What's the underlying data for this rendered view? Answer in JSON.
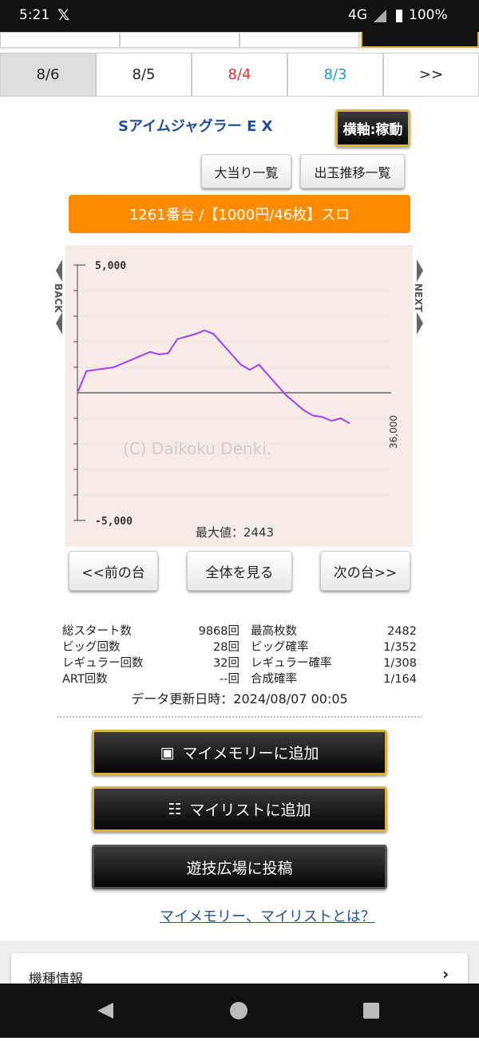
{
  "status_bar": {
    "time": "5:21",
    "network": "4G",
    "battery": "100%"
  },
  "tabs": [
    "8/6",
    "8/5",
    "8/4",
    "8/3",
    ">>"
  ],
  "machine_name": "Sアイムジャグラー E X",
  "axis_toggle": "横軸:稼動",
  "buttons": [
    "大当り一覧",
    "出玉推移一覧"
  ],
  "banner": "1261番台 /【1000円/46枚】スロ",
  "chart": {
    "type": "line",
    "color": "#a040ff",
    "ylim": [
      -5000,
      5000
    ],
    "yticks": [
      {
        "value": 5000,
        "label": "5,000"
      },
      {
        "value": -5000,
        "label": "-5,000"
      }
    ],
    "minor_yticks": [
      4000,
      3000,
      2000,
      1000,
      -1000,
      -2000,
      -3000,
      -4000
    ],
    "zero_line": 0,
    "x_end_label": "36,000",
    "watermark": "(C) Daikoku Denki.",
    "max_label": "最大値：2443",
    "back": "BACK",
    "next": "NEXT",
    "values": [
      0,
      850,
      900,
      950,
      1000,
      1150,
      1300,
      1450,
      1600,
      1500,
      1550,
      2100,
      2200,
      2300,
      2443,
      2300,
      1900,
      1500,
      1100,
      900,
      1100,
      700,
      300,
      -100,
      -400,
      -700,
      -900,
      -950,
      -1100,
      -1000,
      -1200
    ]
  },
  "nav_buttons": [
    "<<前の台",
    "全体を見る",
    "次の台>>"
  ],
  "stats": {
    "left": [
      [
        "総スタート数",
        "9868回"
      ],
      [
        "ビッグ回数",
        "28回"
      ],
      [
        "レギュラー回数",
        "32回"
      ],
      [
        "ART回数",
        "--回"
      ]
    ],
    "right": [
      [
        "最高枚数",
        "2482"
      ],
      [
        "ビッグ確率",
        "1/352"
      ],
      [
        "レギュラー確率",
        "1/308"
      ],
      [
        "合成確率",
        "1/164"
      ]
    ]
  },
  "updated": "データ更新日時：2024/08/07 00:05",
  "actions": [
    "マイメモリーに追加",
    "マイリストに追加",
    "遊技広場に投稿"
  ],
  "help_link": "マイメモリー、マイリストとは？",
  "section": "機種情報"
}
